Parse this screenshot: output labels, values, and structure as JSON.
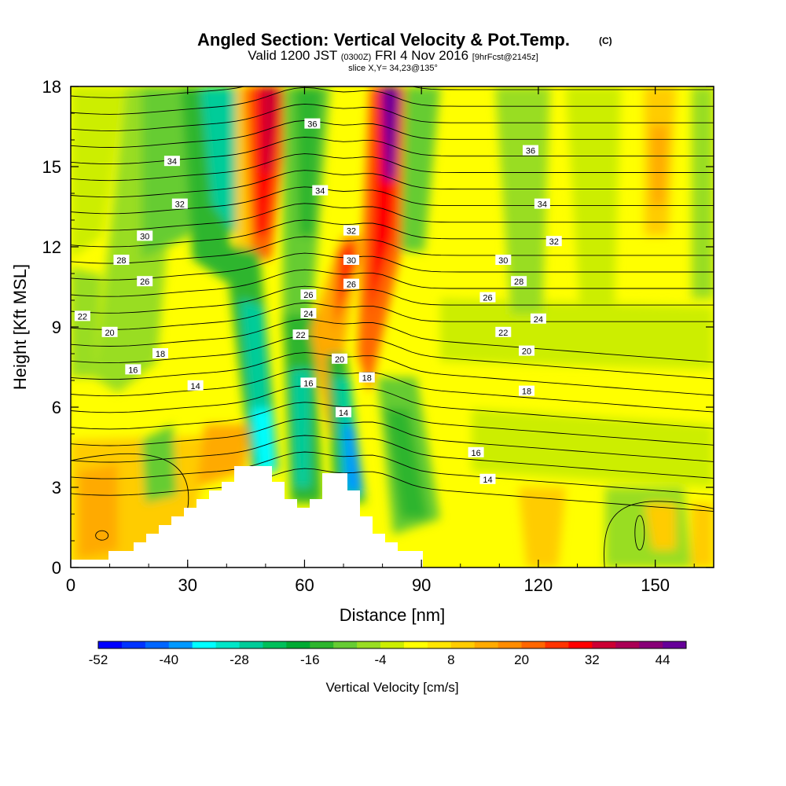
{
  "chart_data": {
    "type": "heatmap",
    "title": "Angled Section: Vertical Velocity & Pot.Temp.",
    "title_units": "(C)",
    "subtitle_valid": "Valid 1200 JST",
    "subtitle_utc": "(0300Z)",
    "subtitle_date": "FRI 4 Nov 2016",
    "subtitle_fcst": "[9hrFcst@2145z]",
    "slice_label": "slice X,Y= 34,23@135°",
    "xlabel": "Distance [nm]",
    "ylabel": "Height [Kft MSL]",
    "xlim": [
      0,
      165
    ],
    "ylim": [
      0,
      18
    ],
    "xticks": [
      0,
      30,
      60,
      90,
      120,
      150
    ],
    "yticks": [
      0,
      3,
      6,
      9,
      12,
      15,
      18
    ],
    "colorbar": {
      "label": "Vertical Velocity [cm/s]",
      "min": -52,
      "max": 48,
      "step": 4,
      "tick_labels": [
        -52,
        -40,
        -28,
        -16,
        -4,
        8,
        20,
        32,
        44
      ],
      "colors": [
        "#0000ff",
        "#0033ff",
        "#0066ff",
        "#0099ff",
        "#00ffff",
        "#00e6c8",
        "#00cc99",
        "#00bf5a",
        "#00aa33",
        "#2db52d",
        "#66cc33",
        "#99dd22",
        "#ccee00",
        "#ffff00",
        "#ffe600",
        "#ffcc00",
        "#ffaa00",
        "#ff8c00",
        "#ff6600",
        "#ff3300",
        "#ff0000",
        "#cc0033",
        "#aa0055",
        "#880077",
        "#660099"
      ]
    },
    "theta_contour_labels": [
      {
        "value": 36,
        "x": 62,
        "y": 16.6
      },
      {
        "value": 36,
        "x": 118,
        "y": 15.6
      },
      {
        "value": 34,
        "x": 26,
        "y": 15.2
      },
      {
        "value": 34,
        "x": 64,
        "y": 14.1
      },
      {
        "value": 34,
        "x": 121,
        "y": 13.6
      },
      {
        "value": 32,
        "x": 28,
        "y": 13.6
      },
      {
        "value": 32,
        "x": 72,
        "y": 12.6
      },
      {
        "value": 32,
        "x": 124,
        "y": 12.2
      },
      {
        "value": 30,
        "x": 19,
        "y": 12.4
      },
      {
        "value": 30,
        "x": 72,
        "y": 11.5
      },
      {
        "value": 30,
        "x": 111,
        "y": 11.5
      },
      {
        "value": 28,
        "x": 13,
        "y": 11.5
      },
      {
        "value": 28,
        "x": 115,
        "y": 10.7
      },
      {
        "value": 26,
        "x": 19,
        "y": 10.7
      },
      {
        "value": 26,
        "x": 61,
        "y": 10.2
      },
      {
        "value": 26,
        "x": 72,
        "y": 10.6
      },
      {
        "value": 26,
        "x": 107,
        "y": 10.1
      },
      {
        "value": 24,
        "x": 61,
        "y": 9.5
      },
      {
        "value": 24,
        "x": 120,
        "y": 9.3
      },
      {
        "value": 22,
        "x": 3,
        "y": 9.4
      },
      {
        "value": 22,
        "x": 59,
        "y": 8.7
      },
      {
        "value": 22,
        "x": 111,
        "y": 8.8
      },
      {
        "value": 20,
        "x": 10,
        "y": 8.8
      },
      {
        "value": 20,
        "x": 69,
        "y": 7.8
      },
      {
        "value": 20,
        "x": 117,
        "y": 8.1
      },
      {
        "value": 18,
        "x": 23,
        "y": 8.0
      },
      {
        "value": 18,
        "x": 76,
        "y": 7.1
      },
      {
        "value": 18,
        "x": 117,
        "y": 6.6
      },
      {
        "value": 16,
        "x": 16,
        "y": 7.4
      },
      {
        "value": 16,
        "x": 61,
        "y": 6.9
      },
      {
        "value": 16,
        "x": 104,
        "y": 4.3
      },
      {
        "value": 14,
        "x": 32,
        "y": 6.8
      },
      {
        "value": 14,
        "x": 70,
        "y": 5.8
      },
      {
        "value": 14,
        "x": 107,
        "y": 3.3
      }
    ]
  }
}
